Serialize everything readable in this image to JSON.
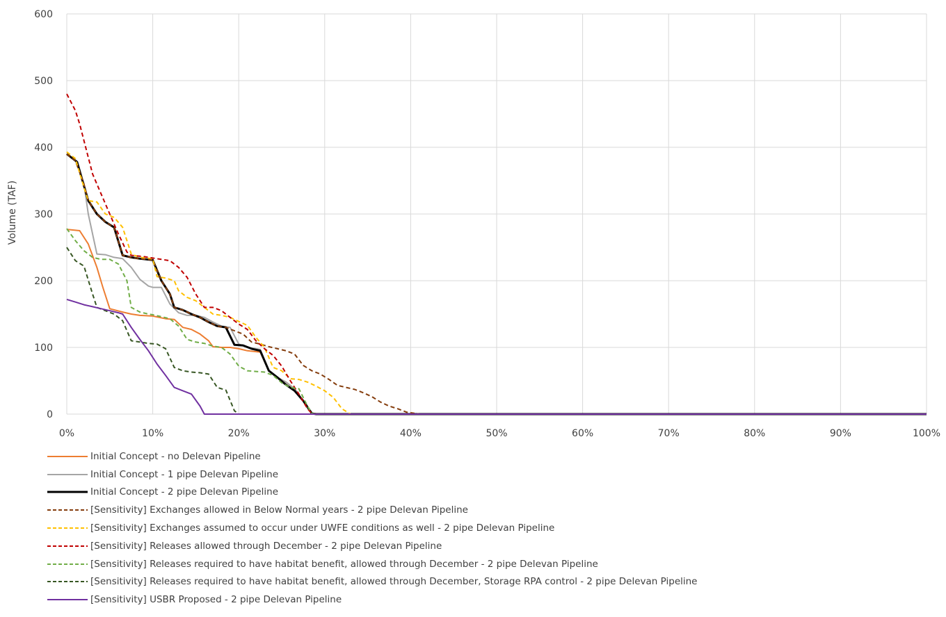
{
  "chart_data": {
    "type": "line",
    "title": "",
    "xlabel": "",
    "ylabel": "Volume (TAF)",
    "xlim": [
      0,
      100
    ],
    "ylim": [
      0,
      600
    ],
    "x_ticks": [
      "0%",
      "10%",
      "20%",
      "30%",
      "40%",
      "50%",
      "60%",
      "70%",
      "80%",
      "90%",
      "100%"
    ],
    "y_ticks": [
      "0",
      "100",
      "200",
      "300",
      "400",
      "500",
      "600"
    ],
    "grid": true,
    "legend_position": "bottom",
    "series": [
      {
        "name": "Initial Concept - no Delevan Pipeline",
        "color": "#ed7d31",
        "dash": "solid",
        "width": 2,
        "points": [
          [
            0,
            277
          ],
          [
            1.5,
            275
          ],
          [
            2.5,
            255
          ],
          [
            3.5,
            220
          ],
          [
            4.2,
            190
          ],
          [
            5,
            158
          ],
          [
            6.5,
            153
          ],
          [
            7.5,
            150
          ],
          [
            8.5,
            148
          ],
          [
            10,
            147
          ],
          [
            11.5,
            143
          ],
          [
            12.5,
            142
          ],
          [
            13.5,
            130
          ],
          [
            14.5,
            127
          ],
          [
            15.5,
            120
          ],
          [
            16.5,
            110
          ],
          [
            17,
            101
          ],
          [
            18,
            100
          ],
          [
            19,
            100
          ],
          [
            20,
            98
          ],
          [
            21,
            95
          ],
          [
            22.5,
            93
          ],
          [
            23.5,
            65
          ],
          [
            24.5,
            55
          ],
          [
            25.5,
            48
          ],
          [
            26.5,
            38
          ],
          [
            27.5,
            20
          ],
          [
            28.5,
            1
          ],
          [
            29,
            0
          ],
          [
            100,
            0
          ]
        ]
      },
      {
        "name": "Initial Concept - 1 pipe Delevan Pipeline",
        "color": "#a5a5a5",
        "dash": "solid",
        "width": 2,
        "points": [
          [
            0,
            390
          ],
          [
            1,
            380
          ],
          [
            2,
            345
          ],
          [
            2.5,
            300
          ],
          [
            3.5,
            240
          ],
          [
            4.5,
            239
          ],
          [
            5.5,
            235
          ],
          [
            6.5,
            233
          ],
          [
            7.5,
            220
          ],
          [
            8.5,
            202
          ],
          [
            9.5,
            192
          ],
          [
            10,
            190
          ],
          [
            11,
            190
          ],
          [
            12,
            165
          ],
          [
            13,
            152
          ],
          [
            14,
            148
          ],
          [
            15,
            148
          ],
          [
            16,
            145
          ],
          [
            17,
            138
          ],
          [
            18,
            132
          ],
          [
            19,
            130
          ],
          [
            20,
            105
          ],
          [
            21,
            100
          ],
          [
            22,
            98
          ],
          [
            22.5,
            97
          ],
          [
            23.5,
            65
          ],
          [
            24.5,
            55
          ],
          [
            25.5,
            48
          ],
          [
            26.5,
            38
          ],
          [
            27.5,
            20
          ],
          [
            28.5,
            1
          ],
          [
            29,
            0
          ],
          [
            100,
            0
          ]
        ]
      },
      {
        "name": "Initial Concept - 2 pipe Delevan Pipeline",
        "color": "#000000",
        "dash": "solid",
        "width": 3,
        "points": [
          [
            0,
            390
          ],
          [
            1.2,
            378
          ],
          [
            2.5,
            320
          ],
          [
            3.5,
            300
          ],
          [
            4.5,
            288
          ],
          [
            5.5,
            280
          ],
          [
            6.5,
            238
          ],
          [
            7.5,
            235
          ],
          [
            8.5,
            233
          ],
          [
            10,
            231
          ],
          [
            11,
            200
          ],
          [
            12,
            180
          ],
          [
            12.5,
            160
          ],
          [
            13.5,
            156
          ],
          [
            14.5,
            150
          ],
          [
            15.5,
            145
          ],
          [
            16.5,
            138
          ],
          [
            17.5,
            132
          ],
          [
            18.5,
            130
          ],
          [
            19.5,
            104
          ],
          [
            20.5,
            103
          ],
          [
            21.5,
            98
          ],
          [
            22.5,
            95
          ],
          [
            23.5,
            65
          ],
          [
            24.5,
            55
          ],
          [
            25.5,
            44
          ],
          [
            26.5,
            35
          ],
          [
            27.5,
            20
          ],
          [
            28.5,
            1
          ],
          [
            29,
            0
          ],
          [
            100,
            0
          ]
        ]
      },
      {
        "name": "[Sensitivity] Exchanges allowed in Below Normal years - 2 pipe Delevan Pipeline",
        "color": "#843c0c",
        "dash": "dashed",
        "width": 2,
        "points": [
          [
            0,
            390
          ],
          [
            1,
            380
          ],
          [
            2,
            345
          ],
          [
            2.5,
            320
          ],
          [
            3.5,
            300
          ],
          [
            4.5,
            288
          ],
          [
            5.5,
            280
          ],
          [
            6.5,
            238
          ],
          [
            7.5,
            235
          ],
          [
            8.5,
            233
          ],
          [
            10,
            231
          ],
          [
            11,
            200
          ],
          [
            12,
            180
          ],
          [
            12.5,
            160
          ],
          [
            13.5,
            156
          ],
          [
            14.5,
            150
          ],
          [
            15.5,
            145
          ],
          [
            16.5,
            138
          ],
          [
            17.5,
            132
          ],
          [
            18.5,
            130
          ],
          [
            19.5,
            125
          ],
          [
            20.5,
            120
          ],
          [
            21.5,
            108
          ],
          [
            22.5,
            105
          ],
          [
            23.5,
            101
          ],
          [
            24.5,
            98
          ],
          [
            25.5,
            95
          ],
          [
            26.5,
            90
          ],
          [
            27.5,
            73
          ],
          [
            28.5,
            65
          ],
          [
            29.5,
            60
          ],
          [
            30.5,
            52
          ],
          [
            31.5,
            43
          ],
          [
            32.5,
            40
          ],
          [
            33.5,
            37
          ],
          [
            34.5,
            32
          ],
          [
            35.5,
            26
          ],
          [
            36.5,
            18
          ],
          [
            37.5,
            12
          ],
          [
            38.5,
            8
          ],
          [
            39.5,
            3
          ],
          [
            40.5,
            1
          ],
          [
            41,
            0
          ],
          [
            100,
            0
          ]
        ]
      },
      {
        "name": "[Sensitivity] Exchanges assumed to occur under UWFE conditions as well - 2 pipe Delevan Pipeline",
        "color": "#ffc000",
        "dash": "dashed",
        "width": 2,
        "points": [
          [
            0,
            393
          ],
          [
            1,
            383
          ],
          [
            2,
            340
          ],
          [
            2.5,
            320
          ],
          [
            3.5,
            318
          ],
          [
            4.5,
            300
          ],
          [
            5.5,
            295
          ],
          [
            6.5,
            280
          ],
          [
            7,
            260
          ],
          [
            7.5,
            240
          ],
          [
            8.5,
            235
          ],
          [
            10,
            233
          ],
          [
            10.5,
            206
          ],
          [
            11.5,
            204
          ],
          [
            12.5,
            200
          ],
          [
            13,
            185
          ],
          [
            14,
            175
          ],
          [
            15,
            170
          ],
          [
            16,
            160
          ],
          [
            17,
            150
          ],
          [
            18,
            148
          ],
          [
            19,
            145
          ],
          [
            20,
            139
          ],
          [
            21,
            133
          ],
          [
            22,
            115
          ],
          [
            23,
            100
          ],
          [
            24,
            70
          ],
          [
            25,
            65
          ],
          [
            26,
            53
          ],
          [
            27,
            52
          ],
          [
            28,
            48
          ],
          [
            29,
            42
          ],
          [
            30,
            35
          ],
          [
            31,
            25
          ],
          [
            32,
            8
          ],
          [
            33,
            0
          ],
          [
            100,
            0
          ]
        ]
      },
      {
        "name": "[Sensitivity] Releases allowed through December - 2 pipe Delevan Pipeline",
        "color": "#c00000",
        "dash": "dashed",
        "width": 2,
        "points": [
          [
            0,
            480
          ],
          [
            1,
            455
          ],
          [
            1.5,
            435
          ],
          [
            2.5,
            385
          ],
          [
            3,
            360
          ],
          [
            4,
            330
          ],
          [
            5,
            300
          ],
          [
            6,
            270
          ],
          [
            7,
            243
          ],
          [
            7.5,
            238
          ],
          [
            9,
            236
          ],
          [
            10,
            234
          ],
          [
            11,
            232
          ],
          [
            12,
            230
          ],
          [
            13,
            220
          ],
          [
            14,
            205
          ],
          [
            15,
            180
          ],
          [
            16,
            160
          ],
          [
            17,
            160
          ],
          [
            18,
            155
          ],
          [
            19,
            145
          ],
          [
            20,
            135
          ],
          [
            21,
            127
          ],
          [
            22,
            110
          ],
          [
            23,
            98
          ],
          [
            24,
            88
          ],
          [
            25,
            72
          ],
          [
            26,
            50
          ],
          [
            27,
            30
          ],
          [
            28,
            8
          ],
          [
            28.5,
            1
          ],
          [
            29,
            0
          ],
          [
            100,
            0
          ]
        ]
      },
      {
        "name": "[Sensitivity] Releases required to have habitat benefit, allowed through December - 2 pipe Delevan Pipeline",
        "color": "#70ad47",
        "dash": "dashed",
        "width": 2,
        "points": [
          [
            0,
            278
          ],
          [
            1,
            260
          ],
          [
            2,
            245
          ],
          [
            3,
            235
          ],
          [
            4,
            232
          ],
          [
            5,
            232
          ],
          [
            6,
            225
          ],
          [
            7,
            200
          ],
          [
            7.5,
            160
          ],
          [
            8.5,
            153
          ],
          [
            9.5,
            150
          ],
          [
            10,
            149
          ],
          [
            11,
            146
          ],
          [
            12,
            143
          ],
          [
            13,
            132
          ],
          [
            14,
            112
          ],
          [
            15,
            108
          ],
          [
            16,
            106
          ],
          [
            17,
            102
          ],
          [
            18,
            100
          ],
          [
            19,
            90
          ],
          [
            20,
            72
          ],
          [
            21,
            65
          ],
          [
            22,
            64
          ],
          [
            23,
            63
          ],
          [
            24,
            58
          ],
          [
            25,
            47
          ],
          [
            26,
            40
          ],
          [
            27,
            38
          ],
          [
            28,
            12
          ],
          [
            28.5,
            1
          ],
          [
            29,
            0
          ],
          [
            100,
            0
          ]
        ]
      },
      {
        "name": "[Sensitivity] Releases required to have habitat benefit, allowed through December, Storage RPA control - 2 pipe Delevan Pipeline",
        "color": "#375623",
        "dash": "dashed",
        "width": 2,
        "points": [
          [
            0,
            250
          ],
          [
            1,
            230
          ],
          [
            2,
            222
          ],
          [
            3,
            180
          ],
          [
            3.5,
            160
          ],
          [
            4.5,
            155
          ],
          [
            5.5,
            150
          ],
          [
            6.5,
            140
          ],
          [
            7.5,
            110
          ],
          [
            8.5,
            108
          ],
          [
            9.5,
            106
          ],
          [
            10.5,
            105
          ],
          [
            11.5,
            98
          ],
          [
            12.5,
            70
          ],
          [
            13.5,
            65
          ],
          [
            14.5,
            63
          ],
          [
            15.5,
            62
          ],
          [
            16.5,
            60
          ],
          [
            17.5,
            40
          ],
          [
            18.5,
            36
          ],
          [
            19.5,
            5
          ],
          [
            20,
            0
          ],
          [
            100,
            0
          ]
        ]
      },
      {
        "name": "[Sensitivity] USBR Proposed - 2 pipe Delevan Pipeline",
        "color": "#7030a0",
        "dash": "solid",
        "width": 2,
        "points": [
          [
            0,
            172
          ],
          [
            1,
            168
          ],
          [
            2,
            164
          ],
          [
            3,
            161
          ],
          [
            4,
            158
          ],
          [
            5,
            155
          ],
          [
            6,
            152
          ],
          [
            6.5,
            150
          ],
          [
            7.5,
            130
          ],
          [
            8.5,
            112
          ],
          [
            9.5,
            95
          ],
          [
            10.5,
            75
          ],
          [
            11.5,
            58
          ],
          [
            12.5,
            40
          ],
          [
            13.5,
            35
          ],
          [
            14.5,
            30
          ],
          [
            15.5,
            12
          ],
          [
            16,
            0
          ],
          [
            100,
            0
          ]
        ]
      }
    ]
  }
}
